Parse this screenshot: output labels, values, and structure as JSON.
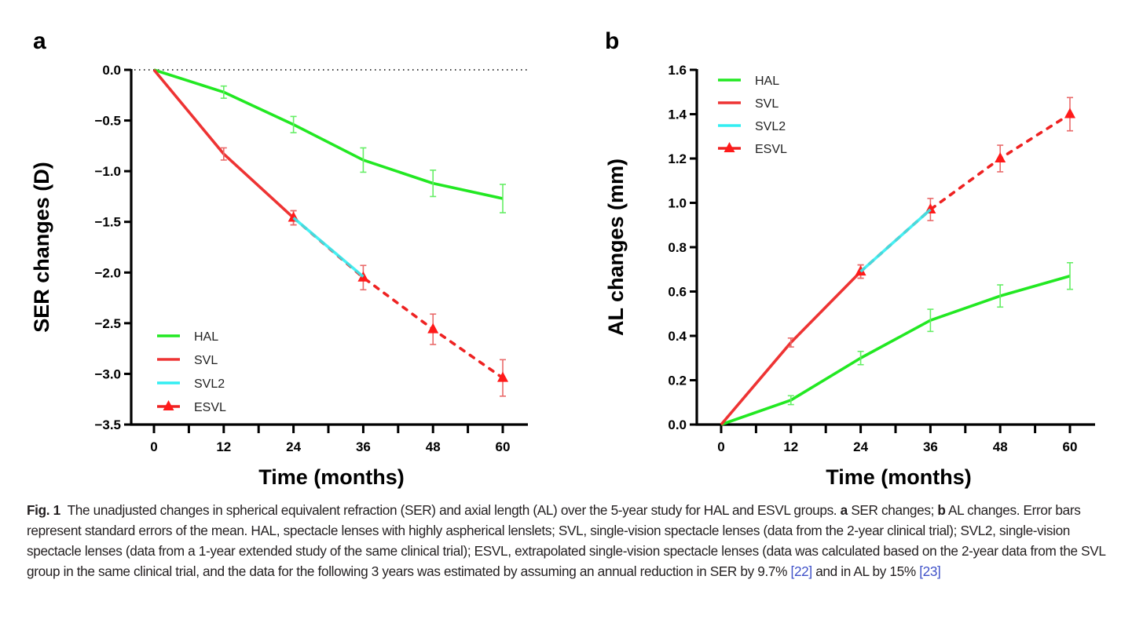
{
  "figure": {
    "caption_label": "Fig. 1",
    "caption_parts": [
      {
        "t": "The unadjusted changes in spherical equivalent refraction (SER) and axial length (AL) over the 5-year study for HAL and ESVL groups. ",
        "s": "normal"
      },
      {
        "t": "a",
        "s": "bold"
      },
      {
        "t": " SER changes; ",
        "s": "normal"
      },
      {
        "t": "b",
        "s": "bold"
      },
      {
        "t": " AL changes. Error bars represent standard errors of the mean. HAL, spectacle lenses with highly aspherical lenslets; SVL, single-vision spectacle lenses (data from the 2-year clinical trial); SVL2, single-vision spectacle lenses (data from a 1-year extended study of the same clinical trial); ESVL, extrapolated single-vision spectacle lenses (data was calculated based on the 2-year data from the SVL group in the same clinical trial, and the data for the following 3 years was estimated by assuming an annual reduction in SER by 9.7% ",
        "s": "normal"
      },
      {
        "t": "[22]",
        "s": "ref"
      },
      {
        "t": " and in AL by 15% ",
        "s": "normal"
      },
      {
        "t": "[23]",
        "s": "ref"
      }
    ]
  },
  "colors": {
    "HAL": "#22e822",
    "SVL": "#ee3333",
    "SVL2": "#33eef2",
    "ESVL": "#ee2222",
    "axis": "#000000"
  },
  "chart_data": [
    {
      "panel": "a",
      "type": "line",
      "title": "",
      "xlabel": "Time (months)",
      "ylabel": "SER changes (D)",
      "xlim": [
        0,
        60
      ],
      "ylim": [
        -3.5,
        0.0
      ],
      "xticks": [
        0,
        12,
        24,
        36,
        48,
        60
      ],
      "xtick_labels": [
        "0",
        "12",
        "24",
        "36",
        "48",
        "60"
      ],
      "x_minor_ticks": [
        6,
        18,
        30,
        42,
        54
      ],
      "yticks": [
        0.0,
        -0.5,
        -1.0,
        -1.5,
        -2.0,
        -2.5,
        -3.0,
        -3.5
      ],
      "ytick_labels": [
        "0.0",
        "−0.5",
        "−1.0",
        "−1.5",
        "−2.0",
        "−2.5",
        "−3.0",
        "−3.5"
      ],
      "reference_line": {
        "y": 0.0,
        "style": "dotted"
      },
      "grid": false,
      "legend_position": "bottom-left",
      "series": [
        {
          "name": "HAL",
          "style": "solid",
          "marker": "none",
          "x": [
            0,
            12,
            24,
            36,
            48,
            60
          ],
          "y": [
            0.0,
            -0.22,
            -0.54,
            -0.89,
            -1.12,
            -1.27
          ],
          "err": [
            0,
            0.06,
            0.08,
            0.12,
            0.13,
            0.14
          ]
        },
        {
          "name": "SVL",
          "style": "solid",
          "marker": "none",
          "x": [
            0,
            12,
            24
          ],
          "y": [
            0.0,
            -0.83,
            -1.46
          ],
          "err": [
            0,
            0.06,
            0.07
          ]
        },
        {
          "name": "SVL2",
          "style": "solid",
          "marker": "none",
          "x": [
            24,
            36
          ],
          "y": [
            -1.46,
            -2.04
          ],
          "err": [
            0,
            0
          ]
        },
        {
          "name": "ESVL",
          "style": "dashed",
          "marker": "triangle",
          "x": [
            24,
            36,
            48,
            60
          ],
          "y": [
            -1.46,
            -2.05,
            -2.56,
            -3.04
          ],
          "err": [
            0.07,
            0.12,
            0.15,
            0.18
          ]
        }
      ]
    },
    {
      "panel": "b",
      "type": "line",
      "title": "",
      "xlabel": "Time (months)",
      "ylabel": "AL changes (mm)",
      "xlim": [
        0,
        60
      ],
      "ylim": [
        0.0,
        1.6
      ],
      "xticks": [
        0,
        12,
        24,
        36,
        48,
        60
      ],
      "xtick_labels": [
        "0",
        "12",
        "24",
        "36",
        "48",
        "60"
      ],
      "x_minor_ticks": [
        6,
        18,
        30,
        42,
        54
      ],
      "yticks": [
        0.0,
        0.2,
        0.4,
        0.6,
        0.8,
        1.0,
        1.2,
        1.4,
        1.6
      ],
      "ytick_labels": [
        "0.0",
        "0.2",
        "0.4",
        "0.6",
        "0.8",
        "1.0",
        "1.2",
        "1.4",
        "1.6"
      ],
      "grid": false,
      "legend_position": "top-left",
      "series": [
        {
          "name": "HAL",
          "style": "solid",
          "marker": "none",
          "x": [
            0,
            12,
            24,
            36,
            48,
            60
          ],
          "y": [
            0.0,
            0.11,
            0.3,
            0.47,
            0.58,
            0.67
          ],
          "err": [
            0,
            0.02,
            0.03,
            0.05,
            0.05,
            0.06
          ]
        },
        {
          "name": "SVL",
          "style": "solid",
          "marker": "none",
          "x": [
            0,
            12,
            24
          ],
          "y": [
            0.0,
            0.37,
            0.69
          ],
          "err": [
            0,
            0.02,
            0.03
          ]
        },
        {
          "name": "SVL2",
          "style": "solid",
          "marker": "none",
          "x": [
            24,
            36
          ],
          "y": [
            0.69,
            0.97
          ],
          "err": [
            0,
            0
          ]
        },
        {
          "name": "ESVL",
          "style": "dashed",
          "marker": "triangle",
          "x": [
            24,
            36,
            48,
            60
          ],
          "y": [
            0.69,
            0.97,
            1.2,
            1.4
          ],
          "err": [
            0.03,
            0.05,
            0.06,
            0.075
          ]
        }
      ]
    }
  ],
  "legend": [
    "HAL",
    "SVL",
    "SVL2",
    "ESVL"
  ]
}
